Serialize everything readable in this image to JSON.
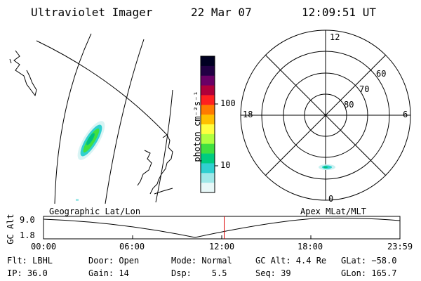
{
  "header": {
    "instrument": "Ultraviolet Imager",
    "date": "22 Mar 07",
    "time": "12:09:51 UT"
  },
  "colorbar": {
    "label": "photon cm⁻²s⁻¹",
    "tick_100": "100",
    "tick_10": "10",
    "colors": [
      "#000022",
      "#220044",
      "#6a0066",
      "#b0003a",
      "#ff2020",
      "#ff7a00",
      "#ffc000",
      "#ffff40",
      "#b0ff40",
      "#40e040",
      "#00cc80",
      "#30d0d0",
      "#a0e8e8",
      "#e8f8f8"
    ]
  },
  "polar": {
    "mlt_top": "12",
    "mlt_left": "18",
    "mlt_right": "6",
    "mlt_bottom": "0",
    "lat_60": "60",
    "lat_70": "70",
    "lat_80": "80"
  },
  "timeline": {
    "y_axis_label": "GC Alt",
    "ymax": "9.0",
    "ymin": "1.8",
    "left_title": "Geographic Lat/Lon",
    "right_title": "Apex MLat/MLT",
    "ticks": [
      "00:00",
      "06:00",
      "12:00",
      "18:00",
      "23:59"
    ],
    "current_time_fraction": 0.5069,
    "marker_color": "#dd0000"
  },
  "info": {
    "flt": "Flt: LBHL",
    "ip": "IP: 36.0",
    "door": "Door: Open",
    "gain": "Gain: 14",
    "mode": "Mode: Normal",
    "dsp": "Dsp:    5.5",
    "gcalt": "GC Alt: 4.4 Re",
    "seq": "Seq: 39",
    "glat": "GLat: −58.0",
    "glon": "GLon: 165.7"
  }
}
